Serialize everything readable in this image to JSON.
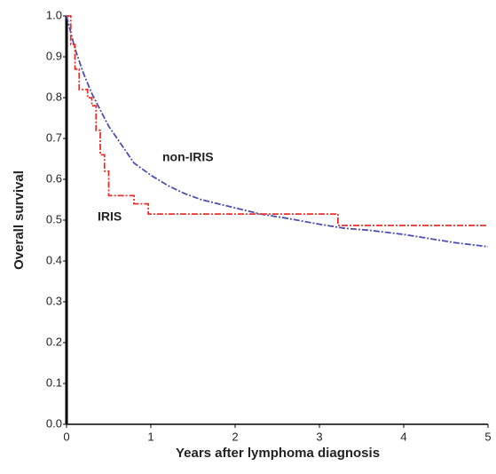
{
  "chart_data": {
    "type": "line",
    "step": true,
    "x_label": "Years after lymphoma diagnosis",
    "y_label": "Overall survival",
    "xlim": [
      0,
      5
    ],
    "ylim": [
      0,
      1
    ],
    "xticks": [
      0,
      1,
      2,
      3,
      4,
      5
    ],
    "yticks": [
      {
        "value": 0,
        "label": "0.0"
      },
      0.1,
      0.2,
      0.3,
      0.4,
      0.5,
      0.6,
      0.7,
      0.8,
      0.9,
      {
        "value": 1,
        "label": "1.0"
      }
    ],
    "series": [
      {
        "name": "non-IRIS",
        "color": "#4d4db3",
        "x": [
          0,
          0.1,
          0.2,
          0.3,
          0.4,
          0.5,
          0.6,
          0.7,
          0.8,
          1.0,
          1.2,
          1.4,
          1.6,
          1.8,
          2.0,
          2.3,
          2.6,
          3.0,
          3.3,
          3.6,
          4.0,
          4.3,
          4.6,
          5.0
        ],
        "values": [
          1.0,
          0.92,
          0.86,
          0.81,
          0.77,
          0.73,
          0.7,
          0.67,
          0.64,
          0.61,
          0.585,
          0.565,
          0.55,
          0.54,
          0.53,
          0.515,
          0.505,
          0.49,
          0.48,
          0.475,
          0.465,
          0.455,
          0.445,
          0.435
        ]
      },
      {
        "name": "IRIS",
        "color": "#e8302a",
        "x": [
          0,
          0.05,
          0.05,
          0.1,
          0.1,
          0.15,
          0.15,
          0.25,
          0.25,
          0.3,
          0.3,
          0.35,
          0.35,
          0.4,
          0.4,
          0.45,
          0.45,
          0.5,
          0.5,
          0.8,
          0.8,
          0.97,
          0.97,
          3.22,
          3.22,
          5
        ],
        "values": [
          1,
          1,
          0.93,
          0.93,
          0.87,
          0.87,
          0.82,
          0.82,
          0.8,
          0.8,
          0.78,
          0.78,
          0.72,
          0.72,
          0.66,
          0.66,
          0.62,
          0.62,
          0.56,
          0.56,
          0.54,
          0.54,
          0.515,
          0.515,
          0.487,
          0.487
        ]
      }
    ]
  }
}
